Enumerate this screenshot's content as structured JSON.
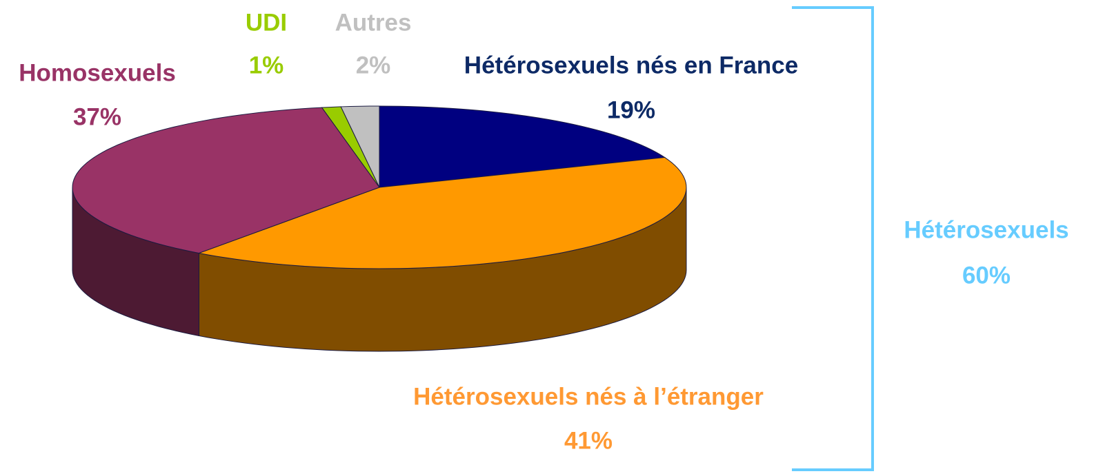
{
  "chart_data": {
    "type": "pie",
    "categories": [
      "Hétérosexuels nés en France",
      "Hétérosexuels nés à l’étranger",
      "Homosexuels",
      "UDI",
      "Autres"
    ],
    "values": [
      19,
      41,
      37,
      1,
      2
    ],
    "value_labels": [
      "19%",
      "41%",
      "37%",
      "1%",
      "2%"
    ],
    "colors": [
      "#000080",
      "#ff9900",
      "#993366",
      "#99cc00",
      "#c0c0c0"
    ],
    "label_colors": [
      "#0d2a66",
      "#ff9933",
      "#993366",
      "#99cc00",
      "#c0c0c0"
    ],
    "annotation": {
      "text": "Hétérosexuels",
      "value": 60,
      "value_label": "60%",
      "color": "#66ccff"
    }
  }
}
